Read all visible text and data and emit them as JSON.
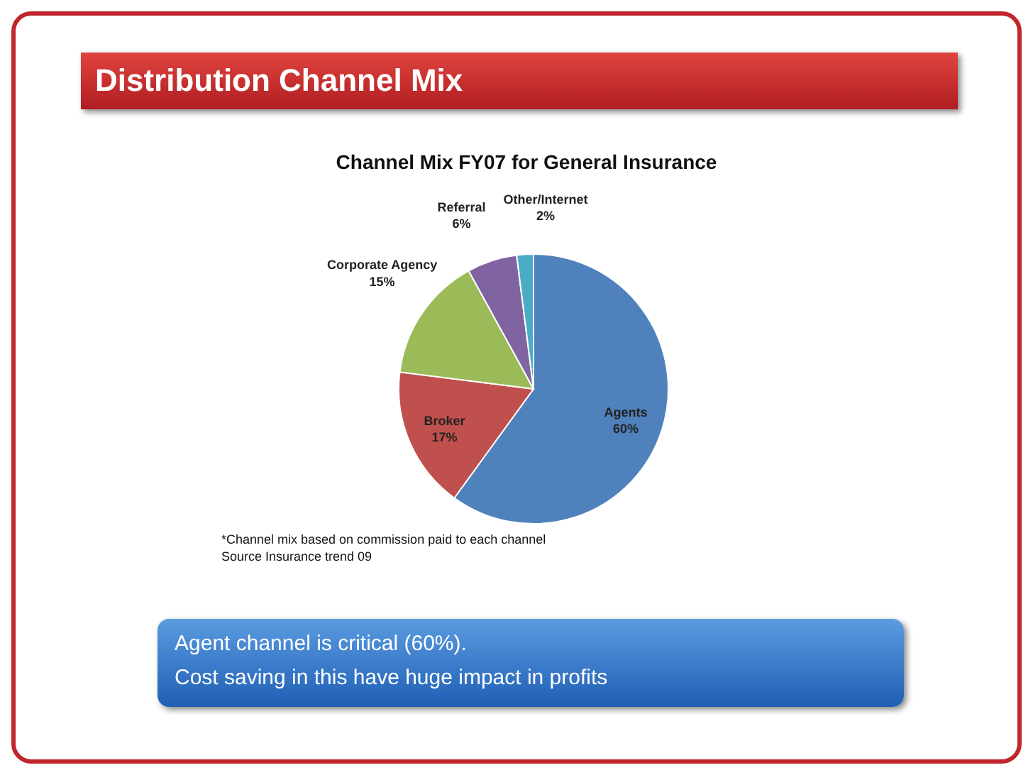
{
  "chart_data": {
    "type": "pie",
    "title": "Distribution Channel Mix",
    "subtitle": "Channel Mix FY07 for General Insurance",
    "categories": [
      "Agents",
      "Broker",
      "Corporate Agency",
      "Referral",
      "Other/Internet"
    ],
    "values": [
      60,
      17,
      15,
      6,
      2
    ],
    "colors": [
      "#4f81bd",
      "#c0504d",
      "#9bbb59",
      "#8064a2",
      "#4bacc6"
    ],
    "value_labels": [
      "60%",
      "17%",
      "15%",
      "6%",
      "2%"
    ],
    "legend": false,
    "annotations": [
      "*Channel mix based on commission paid to each channel",
      "Source Insurance trend 09",
      "Agent channel is critical (60%).",
      "Cost saving in this have huge impact in profits"
    ]
  }
}
